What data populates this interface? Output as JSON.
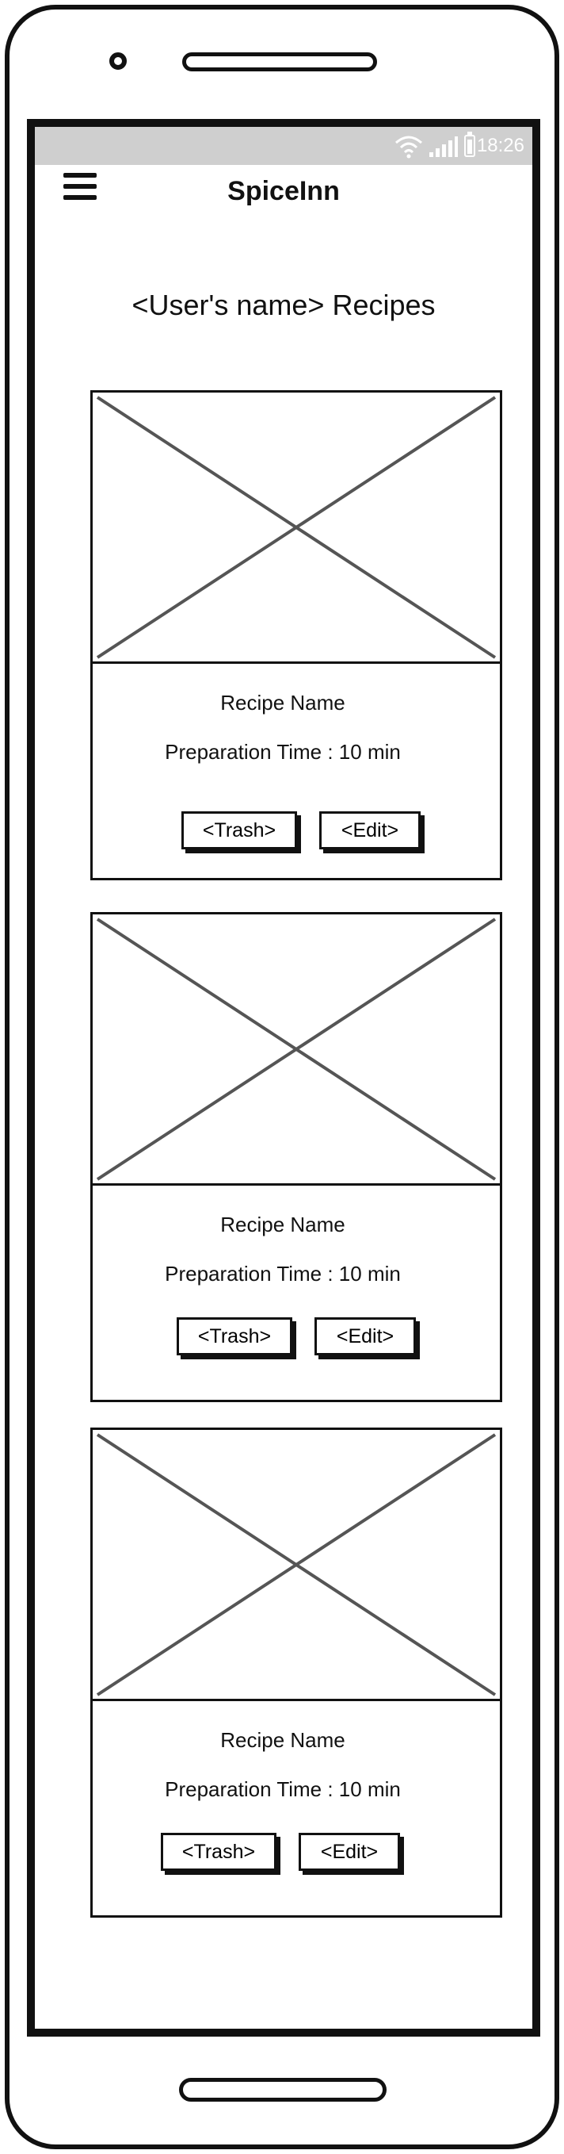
{
  "status_bar": {
    "time": "18:26"
  },
  "header": {
    "app_title": "SpiceInn",
    "menu_icon": "hamburger-menu-icon"
  },
  "page": {
    "title": "<User's name> Recipes"
  },
  "recipes": [
    {
      "name": "Recipe Name",
      "prep_time": "Preparation Time : 10 min",
      "trash_label": "<Trash>",
      "edit_label": "<Edit>"
    },
    {
      "name": "Recipe Name",
      "prep_time": "Preparation Time : 10 min",
      "trash_label": "<Trash>",
      "edit_label": "<Edit>"
    },
    {
      "name": "Recipe Name",
      "prep_time": "Preparation Time : 10 min",
      "trash_label": "<Trash>",
      "edit_label": "<Edit>"
    }
  ]
}
